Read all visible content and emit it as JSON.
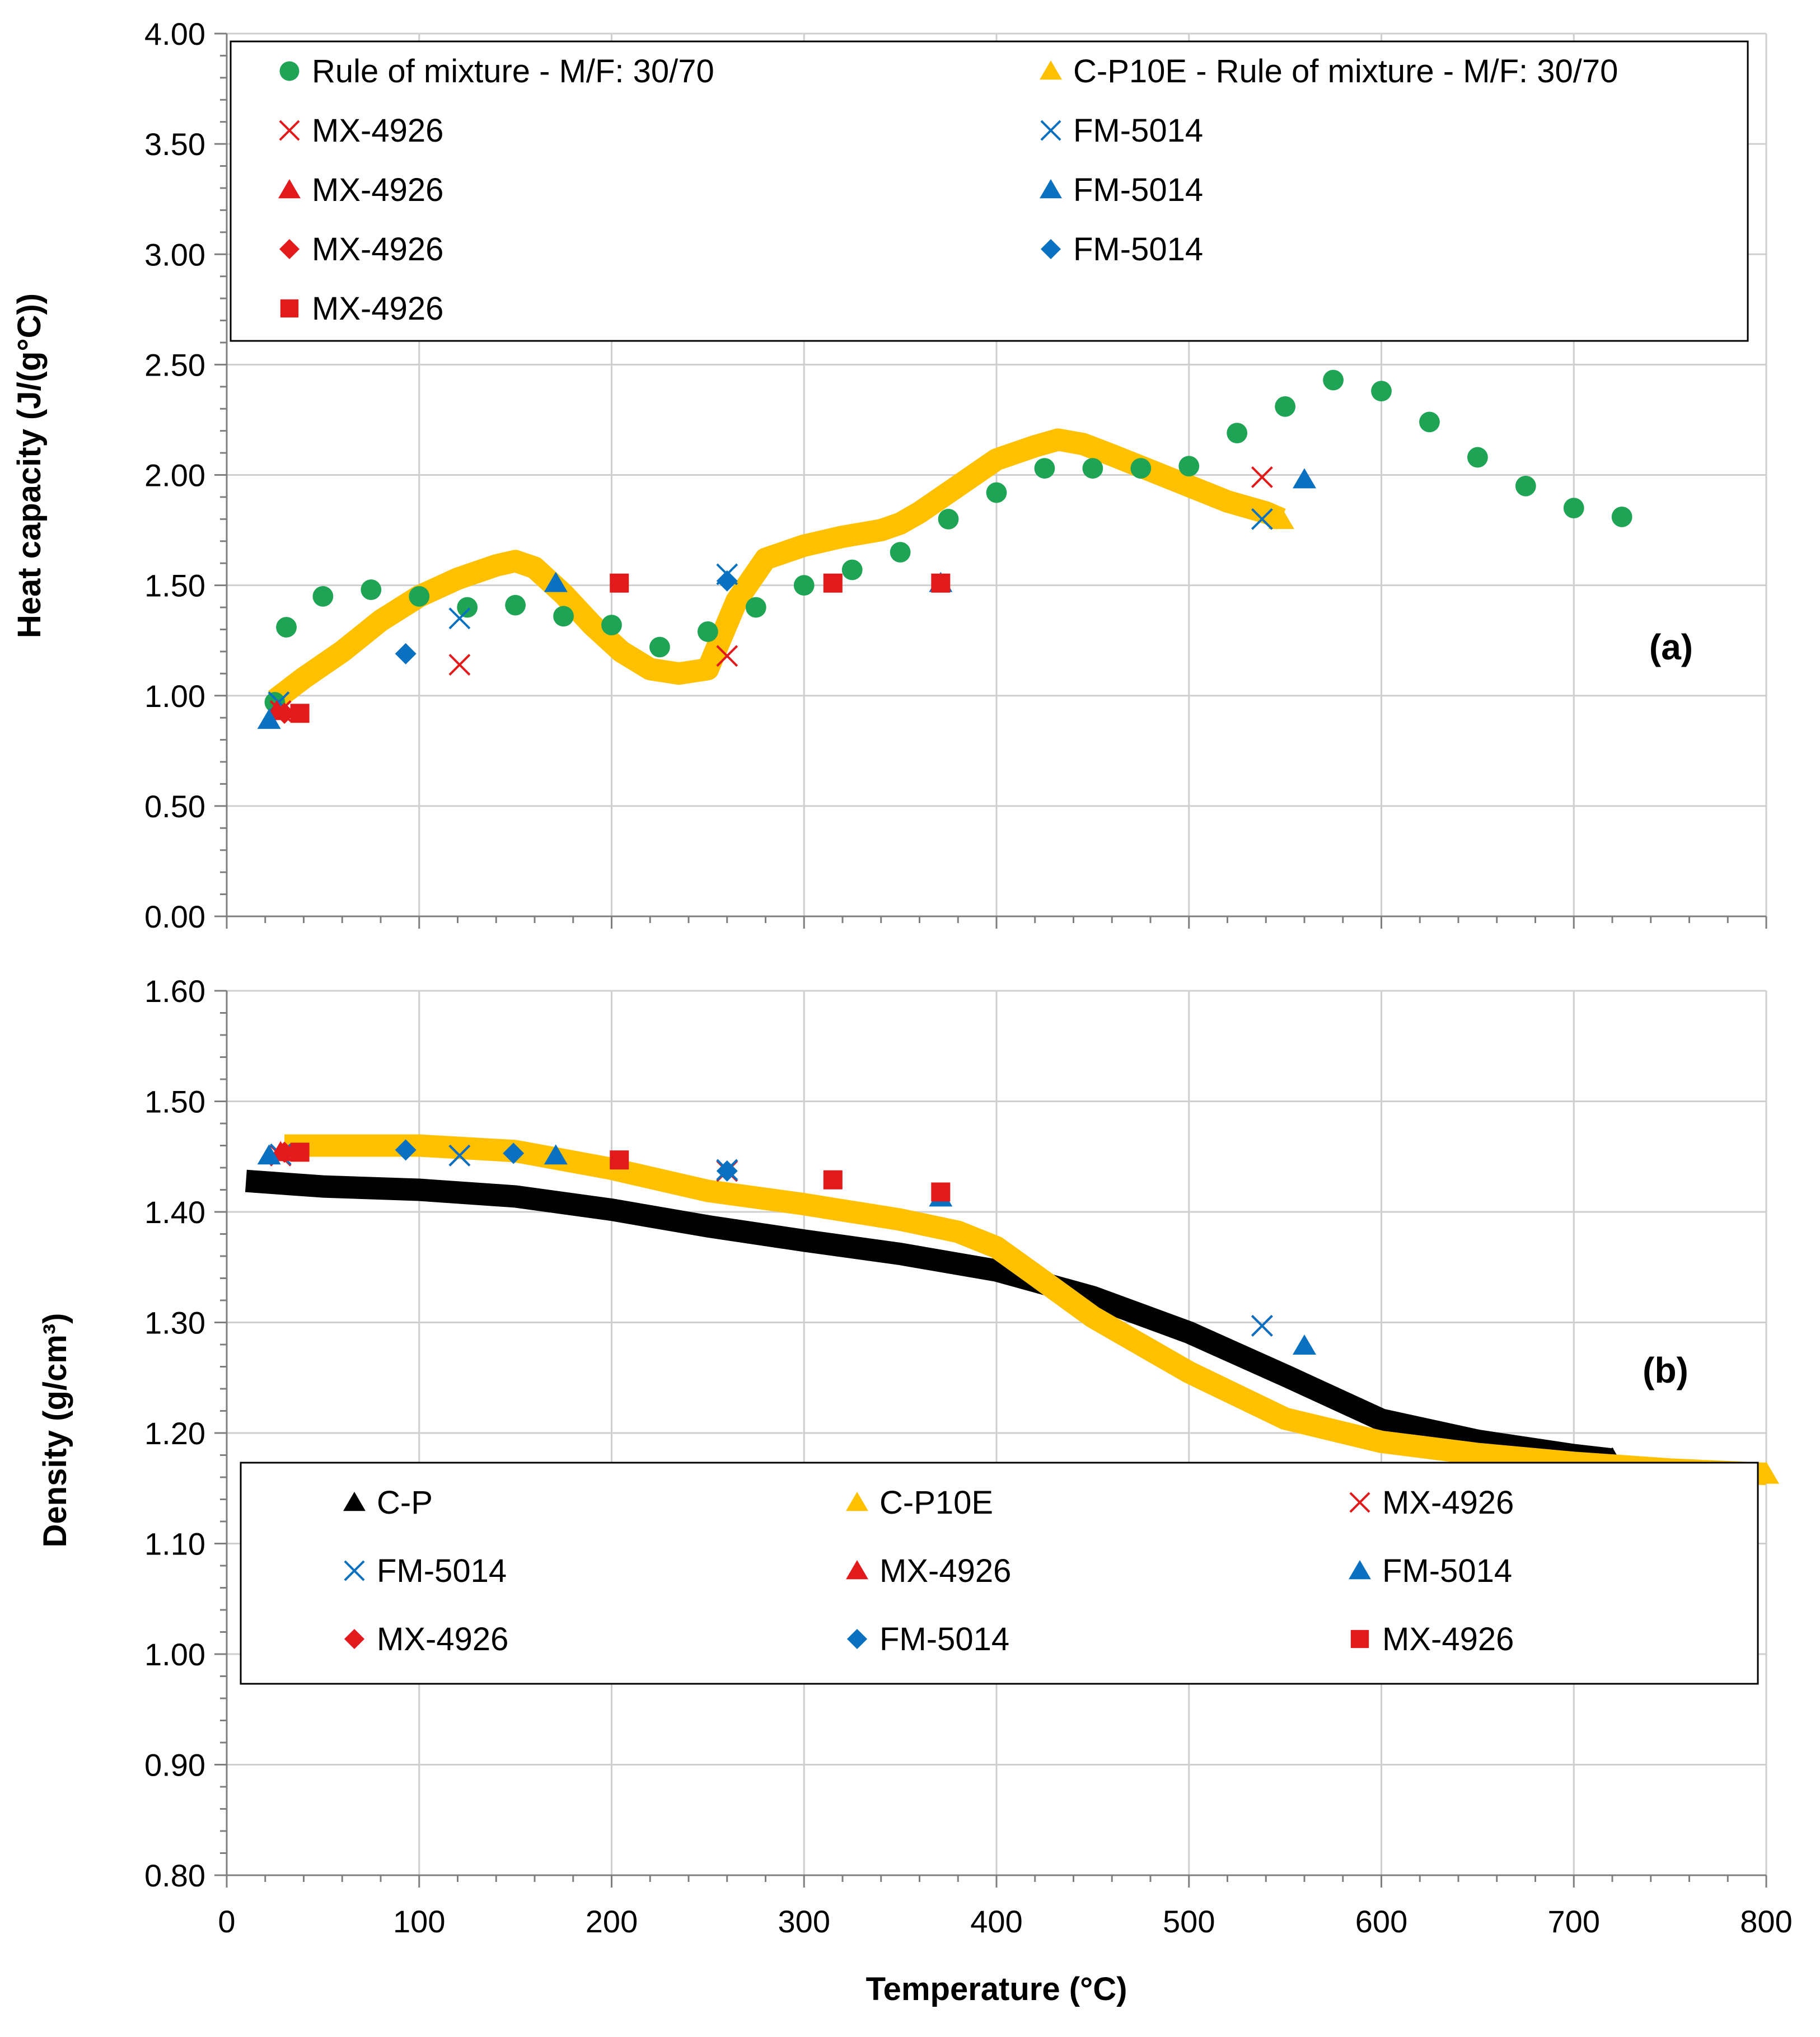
{
  "colors": {
    "green": "#1FA354",
    "yellow": "#FFC000",
    "red": "#E31A1C",
    "blue": "#0A70C0",
    "black": "#000000",
    "grid": "#CFCFCF"
  },
  "chart_data": [
    {
      "id": "a",
      "type": "scatter",
      "panel_label": "(a)",
      "ylabel": "Heat capacity (J/(g°C))",
      "xlabel": "",
      "xlim": [
        0,
        800
      ],
      "ylim": [
        0,
        4
      ],
      "yticks": [
        "0.00",
        "0.50",
        "1.00",
        "1.50",
        "2.00",
        "2.50",
        "3.00",
        "3.50",
        "4.00"
      ],
      "legend_position": "top",
      "legend": [
        {
          "label": "Rule of mixture - M/F: 30/70",
          "marker": "circle",
          "color": "green"
        },
        {
          "label": "C-P10E - Rule of mixture - M/F: 30/70",
          "marker": "triangle",
          "color": "yellow"
        },
        {
          "label": "MX-4926",
          "marker": "x",
          "color": "red"
        },
        {
          "label": "FM-5014",
          "marker": "x",
          "color": "blue"
        },
        {
          "label": "MX-4926",
          "marker": "triangle",
          "color": "red"
        },
        {
          "label": "FM-5014",
          "marker": "triangle",
          "color": "blue"
        },
        {
          "label": "MX-4926",
          "marker": "diamond",
          "color": "red"
        },
        {
          "label": "FM-5014",
          "marker": "diamond",
          "color": "blue"
        },
        {
          "label": "MX-4926",
          "marker": "square",
          "color": "red"
        }
      ],
      "series": [
        {
          "name": "C-P10E - Rule of mixture - M/F: 30/70",
          "render": "band",
          "color": "yellow",
          "x": [
            25,
            40,
            60,
            80,
            100,
            120,
            140,
            150,
            160,
            175,
            190,
            205,
            220,
            235,
            250,
            265,
            280,
            300,
            320,
            340,
            350,
            360,
            380,
            400,
            420,
            432,
            445,
            460,
            480,
            500,
            520,
            540,
            548
          ],
          "y": [
            0.98,
            1.08,
            1.2,
            1.34,
            1.45,
            1.53,
            1.59,
            1.61,
            1.58,
            1.46,
            1.32,
            1.2,
            1.12,
            1.1,
            1.12,
            1.43,
            1.62,
            1.68,
            1.72,
            1.75,
            1.78,
            1.83,
            1.95,
            2.07,
            2.13,
            2.16,
            2.14,
            2.09,
            2.02,
            1.95,
            1.88,
            1.83,
            1.8
          ]
        },
        {
          "name": "Rule of mixture - M/F: 30/70",
          "marker": "circle",
          "color": "green",
          "x": [
            25,
            31,
            50,
            75,
            100,
            125,
            150,
            175,
            200,
            225,
            250,
            275,
            300,
            325,
            350,
            375,
            400,
            425,
            450,
            475,
            500,
            525,
            550,
            575,
            600,
            625,
            650,
            675,
            700,
            725
          ],
          "y": [
            0.97,
            1.31,
            1.45,
            1.48,
            1.45,
            1.4,
            1.41,
            1.36,
            1.32,
            1.22,
            1.29,
            1.4,
            1.5,
            1.57,
            1.65,
            1.8,
            1.92,
            2.03,
            2.03,
            2.03,
            2.04,
            2.19,
            2.31,
            2.43,
            2.38,
            2.24,
            2.08,
            1.95,
            1.85,
            1.81
          ]
        },
        {
          "name": "MX-4926",
          "marker": "x",
          "color": "red",
          "x": [
            28,
            121,
            260,
            538
          ],
          "y": [
            0.93,
            1.14,
            1.18,
            1.99
          ]
        },
        {
          "name": "FM-5014",
          "marker": "x",
          "color": "blue",
          "x": [
            27,
            121,
            260,
            538
          ],
          "y": [
            0.97,
            1.35,
            1.55,
            1.8
          ]
        },
        {
          "name": "MX-4926",
          "marker": "triangle",
          "color": "red",
          "x": [
            26
          ],
          "y": [
            0.93
          ]
        },
        {
          "name": "FM-5014",
          "marker": "triangle",
          "color": "blue",
          "x": [
            22,
            171,
            371,
            560
          ],
          "y": [
            0.89,
            1.51,
            1.51,
            1.98
          ]
        },
        {
          "name": "MX-4926",
          "marker": "diamond",
          "color": "red",
          "x": [
            30
          ],
          "y": [
            0.92
          ]
        },
        {
          "name": "FM-5014",
          "marker": "diamond",
          "color": "blue",
          "x": [
            93,
            260
          ],
          "y": [
            1.19,
            1.52
          ]
        },
        {
          "name": "MX-4926",
          "marker": "square",
          "color": "red",
          "x": [
            38,
            204,
            315,
            371
          ],
          "y": [
            0.92,
            1.51,
            1.51,
            1.51
          ]
        }
      ]
    },
    {
      "id": "b",
      "type": "scatter",
      "panel_label": "(b)",
      "ylabel": "Density (g/cm³)",
      "xlabel": "Temperature (°C)",
      "xlim": [
        0,
        800
      ],
      "ylim": [
        0.8,
        1.6
      ],
      "xticks": [
        "0",
        "100",
        "200",
        "300",
        "400",
        "500",
        "600",
        "700",
        "800"
      ],
      "yticks": [
        "0.80",
        "0.90",
        "1.00",
        "1.10",
        "1.20",
        "1.30",
        "1.40",
        "1.50",
        "1.60"
      ],
      "legend_position": "bottom",
      "legend": [
        {
          "label": "C-P",
          "marker": "triangle",
          "color": "black"
        },
        {
          "label": "C-P10E",
          "marker": "triangle",
          "color": "yellow"
        },
        {
          "label": "MX-4926",
          "marker": "x",
          "color": "red"
        },
        {
          "label": "FM-5014",
          "marker": "x",
          "color": "blue"
        },
        {
          "label": "MX-4926",
          "marker": "triangle",
          "color": "red"
        },
        {
          "label": "FM-5014",
          "marker": "triangle",
          "color": "blue"
        },
        {
          "label": "MX-4926",
          "marker": "diamond",
          "color": "red"
        },
        {
          "label": "FM-5014",
          "marker": "diamond",
          "color": "blue"
        },
        {
          "label": "MX-4926",
          "marker": "square",
          "color": "red"
        }
      ],
      "series": [
        {
          "name": "C-P",
          "render": "band",
          "color": "black",
          "x": [
            10,
            50,
            100,
            150,
            200,
            250,
            300,
            350,
            400,
            450,
            500,
            550,
            600,
            650,
            700,
            720
          ],
          "y": [
            1.428,
            1.423,
            1.42,
            1.414,
            1.402,
            1.387,
            1.374,
            1.362,
            1.347,
            1.323,
            1.291,
            1.252,
            1.212,
            1.193,
            1.18,
            1.176
          ]
        },
        {
          "name": "C-P10E",
          "render": "band",
          "color": "yellow",
          "x": [
            30,
            50,
            100,
            150,
            200,
            250,
            300,
            350,
            380,
            400,
            420,
            450,
            500,
            550,
            600,
            650,
            700,
            750,
            800
          ],
          "y": [
            1.46,
            1.46,
            1.46,
            1.455,
            1.439,
            1.419,
            1.407,
            1.393,
            1.382,
            1.368,
            1.343,
            1.305,
            1.255,
            1.213,
            1.192,
            1.181,
            1.173,
            1.167,
            1.163
          ]
        },
        {
          "name": "MX-4926",
          "marker": "x",
          "color": "red",
          "x": [
            28,
            121,
            260,
            538
          ],
          "y": [
            1.451,
            1.451,
            1.437,
            1.297
          ]
        },
        {
          "name": "FM-5014",
          "marker": "x",
          "color": "blue",
          "x": [
            28,
            121,
            260,
            538
          ],
          "y": [
            1.452,
            1.451,
            1.438,
            1.297
          ]
        },
        {
          "name": "MX-4926",
          "marker": "triangle",
          "color": "red",
          "x": [
            28
          ],
          "y": [
            1.454
          ]
        },
        {
          "name": "FM-5014",
          "marker": "triangle",
          "color": "blue",
          "x": [
            22,
            171,
            371,
            560
          ],
          "y": [
            1.451,
            1.451,
            1.413,
            1.279
          ]
        },
        {
          "name": "MX-4926",
          "marker": "diamond",
          "color": "red",
          "x": [
            30
          ],
          "y": [
            1.454
          ]
        },
        {
          "name": "FM-5014",
          "marker": "diamond",
          "color": "blue",
          "x": [
            93,
            149,
            260
          ],
          "y": [
            1.456,
            1.453,
            1.437
          ]
        },
        {
          "name": "MX-4926",
          "marker": "square",
          "color": "red",
          "x": [
            38,
            204,
            315,
            371
          ],
          "y": [
            1.454,
            1.447,
            1.429,
            1.418
          ]
        }
      ]
    }
  ]
}
